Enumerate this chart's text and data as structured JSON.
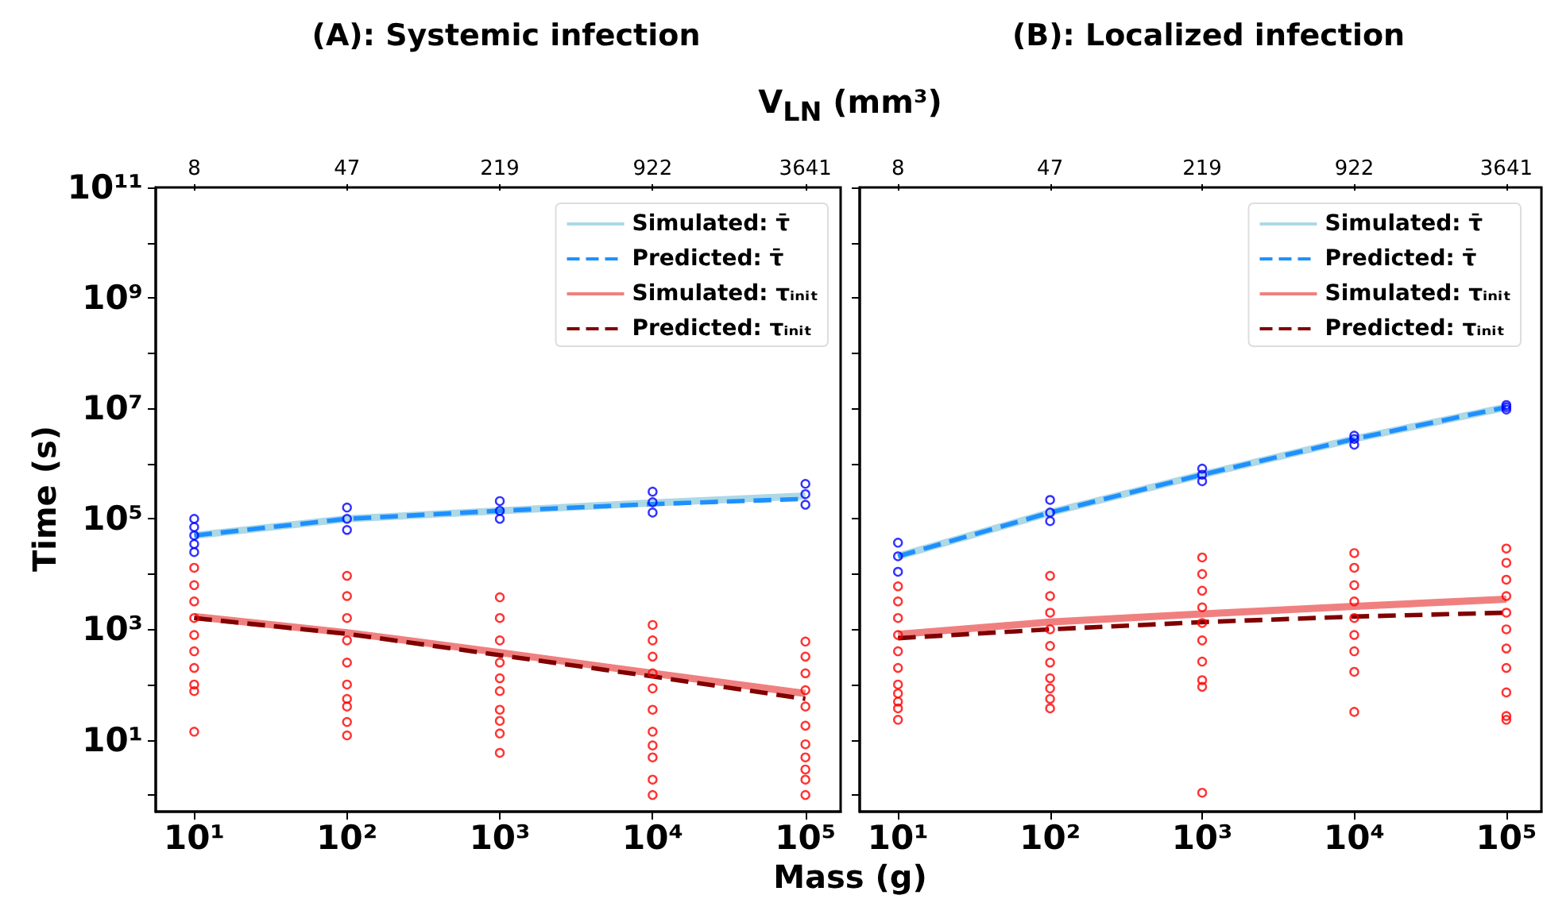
{
  "chart_data": [
    {
      "type": "line",
      "title": "(A): Systemic infection",
      "xlabel": "Mass (g)",
      "ylabel": "Time (s)",
      "x2label": "V$_{LN}$ (mm³)",
      "log": "xy",
      "grid": false,
      "legend": "top right",
      "xlim": [
        5.6,
        170000
      ],
      "xticks": [
        {
          "value": 10,
          "label": "10¹"
        },
        {
          "value": 100,
          "label": "10²"
        },
        {
          "value": 1000,
          "label": "10³"
        },
        {
          "value": 10000,
          "label": "10⁴"
        },
        {
          "value": 100000,
          "label": "10⁵"
        }
      ],
      "annotations": [
        "8",
        "47",
        "219",
        "922",
        "3641"
      ],
      "ylim": [
        0.5,
        100000000000
      ],
      "yticks": [
        {
          "value": 1,
          "label": null
        },
        {
          "value": 10,
          "label": "10¹"
        },
        {
          "value": 100,
          "label": null
        },
        {
          "value": 1000,
          "label": "10³"
        },
        {
          "value": 10000,
          "label": null
        },
        {
          "value": 100000,
          "label": "10⁵"
        },
        {
          "value": 1000000,
          "label": null
        },
        {
          "value": 10000000,
          "label": "10⁷"
        },
        {
          "value": 100000000,
          "label": null
        },
        {
          "value": 1000000000,
          "label": "10⁹"
        },
        {
          "value": 10000000000,
          "label": null
        },
        {
          "value": 100000000000,
          "label": "10¹¹"
        }
      ],
      "series": [
        {
          "type": "scatter",
          "marker": "circle",
          "color": "#0000ff",
          "x": [
            10,
            10,
            10,
            10,
            10,
            100,
            100,
            100,
            1000,
            1000,
            1000,
            10000,
            10000,
            10000,
            100000,
            100000,
            100000
          ],
          "values": [
            100000,
            71000,
            50000,
            35000,
            25000,
            160000,
            100000,
            63000,
            210000,
            140000,
            100000,
            310000,
            200000,
            130000,
            430000,
            280000,
            180000
          ]
        },
        {
          "type": "scatter",
          "marker": "circle",
          "color": "#ff0000",
          "x": [
            10,
            10,
            10,
            10,
            10,
            10,
            10,
            10,
            10,
            10,
            100,
            100,
            100,
            100,
            100,
            100,
            100,
            100,
            100,
            100,
            1000,
            1000,
            1000,
            1000,
            1000,
            1000,
            1000,
            1000,
            1000,
            1000,
            10000,
            10000,
            10000,
            10000,
            10000,
            10000,
            10000,
            10000,
            10000,
            10000,
            10000,
            100000,
            100000,
            100000,
            100000,
            100000,
            100000,
            100000,
            100000,
            100000,
            100000,
            100000
          ],
          "values": [
            13000,
            6300,
            3200,
            1600,
            790,
            400,
            200,
            100,
            76,
            14,
            9300,
            4000,
            1600,
            630,
            250,
            100,
            55,
            40,
            21,
            12,
            3800,
            1600,
            630,
            250,
            130,
            76,
            35,
            22,
            13,
            5.8,
            1200,
            630,
            320,
            160,
            85,
            35,
            14,
            7.9,
            4.8,
            1.9,
            1.0,
            600,
            320,
            160,
            79,
            40,
            18,
            8.3,
            4.8,
            2.9,
            1.9,
            1.0
          ]
        },
        {
          "name": "Simulated: τ̄",
          "type": "line",
          "marker": "none",
          "line_style": "solid",
          "color": "#add8e6",
          "x": [
            10,
            100,
            1000,
            10000,
            100000
          ],
          "values": [
            50000,
            100000,
            140000,
            195000,
            260000
          ]
        },
        {
          "name": "Predicted: τ̄",
          "type": "line",
          "marker": "none",
          "line_style": "dashed",
          "color": "#1e90ff",
          "x": [
            10,
            100,
            1000,
            10000,
            100000
          ],
          "values": [
            50000,
            100000,
            140000,
            185000,
            230000
          ]
        },
        {
          "name": "Simulated: τᵢₙᵢₜ",
          "type": "line",
          "marker": "none",
          "line_style": "solid",
          "color": "#f08080",
          "x": [
            10,
            100,
            1000,
            10000,
            100000
          ],
          "values": [
            1700,
            870,
            380,
            160,
            69
          ]
        },
        {
          "name": "Predicted: τᵢₙᵢₜ",
          "type": "line",
          "marker": "none",
          "line_style": "dashed",
          "color": "#800000",
          "x": [
            10,
            100,
            1000,
            10000,
            100000
          ],
          "values": [
            1600,
            830,
            340,
            140,
            55
          ]
        }
      ]
    },
    {
      "type": "line",
      "title": "(B): Localized infection",
      "log": "xy",
      "grid": false,
      "legend": "top right",
      "tick_labels": "x",
      "xlim": [
        5.6,
        170000
      ],
      "xticks": [
        {
          "value": 10,
          "label": "10¹"
        },
        {
          "value": 100,
          "label": "10²"
        },
        {
          "value": 1000,
          "label": "10³"
        },
        {
          "value": 10000,
          "label": "10⁴"
        },
        {
          "value": 100000,
          "label": "10⁵"
        }
      ],
      "annotations": [
        "8",
        "47",
        "219",
        "922",
        "3641"
      ],
      "ylim": [
        0.5,
        100000000000
      ],
      "yticks": [
        {
          "value": 1,
          "label": null
        },
        {
          "value": 10,
          "label": null
        },
        {
          "value": 100,
          "label": null
        },
        {
          "value": 1000,
          "label": null
        },
        {
          "value": 10000,
          "label": null
        },
        {
          "value": 100000,
          "label": null
        },
        {
          "value": 1000000,
          "label": null
        },
        {
          "value": 10000000,
          "label": null
        },
        {
          "value": 100000000,
          "label": null
        },
        {
          "value": 1000000000,
          "label": null
        },
        {
          "value": 10000000000,
          "label": null
        },
        {
          "value": 100000000000,
          "label": null
        }
      ],
      "series": [
        {
          "type": "scatter",
          "marker": "circle",
          "color": "#0000ff",
          "x": [
            10,
            10,
            10,
            100,
            100,
            100,
            1000,
            1000,
            1000,
            10000,
            10000,
            10000,
            100000,
            100000,
            100000
          ],
          "values": [
            37000,
            21000,
            11000,
            220000,
            130000,
            91000,
            810000,
            630000,
            480000,
            3200000,
            2800000,
            2200000,
            11500000,
            10500000,
            9500000
          ]
        },
        {
          "type": "scatter",
          "marker": "circle",
          "color": "#ff0000",
          "x": [
            10,
            10,
            10,
            10,
            10,
            10,
            10,
            10,
            10,
            10,
            10,
            100,
            100,
            100,
            100,
            100,
            100,
            100,
            100,
            100,
            100,
            1000,
            1000,
            1000,
            1000,
            1000,
            1000,
            1000,
            1000,
            1000,
            1000,
            10000,
            10000,
            10000,
            10000,
            10000,
            10000,
            10000,
            10000,
            10000,
            100000,
            100000,
            100000,
            100000,
            100000,
            100000,
            100000,
            100000,
            100000,
            100000,
            100000
          ],
          "values": [
            6000,
            3200,
            1600,
            790,
            400,
            200,
            100,
            69,
            49,
            37,
            23,
            9300,
            4000,
            2000,
            1000,
            500,
            250,
            130,
            85,
            55,
            37,
            20000,
            10000,
            5000,
            2500,
            1300,
            630,
            260,
            120,
            91,
            1.1,
            24000,
            13000,
            6300,
            3200,
            1600,
            790,
            400,
            170,
            32,
            29000,
            16000,
            7900,
            4000,
            2000,
            1000,
            450,
            200,
            72,
            27,
            23
          ]
        },
        {
          "name": "Simulated: τ̄",
          "type": "line",
          "marker": "none",
          "line_style": "solid",
          "color": "#add8e6",
          "x": [
            10,
            100,
            1000,
            10000,
            100000
          ],
          "values": [
            21000,
            130000,
            630000,
            2800000,
            10500000
          ]
        },
        {
          "name": "Predicted: τ̄",
          "type": "line",
          "marker": "none",
          "line_style": "dashed",
          "color": "#1e90ff",
          "x": [
            10,
            100,
            1000,
            10000,
            100000
          ],
          "values": [
            21000,
            130000,
            630000,
            2800000,
            10500000
          ]
        },
        {
          "name": "Simulated: τᵢₙᵢₜ",
          "type": "line",
          "marker": "none",
          "line_style": "solid",
          "color": "#f08080",
          "x": [
            10,
            100,
            1000,
            10000,
            100000
          ],
          "values": [
            810,
            1350,
            1900,
            2600,
            3500
          ]
        },
        {
          "name": "Predicted: τᵢₙᵢₜ",
          "type": "line",
          "marker": "none",
          "line_style": "dashed",
          "color": "#800000",
          "x": [
            10,
            100,
            1000,
            10000,
            100000
          ],
          "values": [
            690,
            1000,
            1350,
            1700,
            2000
          ]
        }
      ]
    }
  ]
}
